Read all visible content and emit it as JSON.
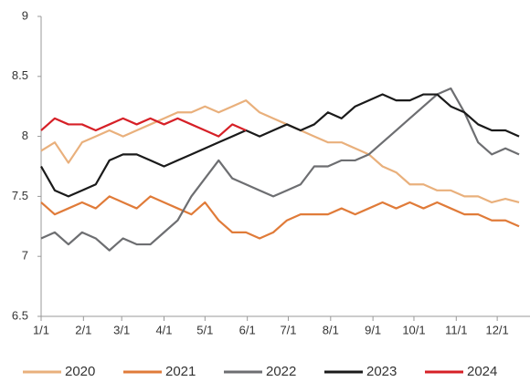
{
  "chart_data": {
    "type": "line",
    "x": [
      0,
      10,
      20,
      30,
      40,
      50,
      60,
      70,
      80,
      90,
      100,
      110,
      120,
      130,
      140,
      150,
      160,
      170,
      180,
      190,
      200,
      210,
      220,
      230,
      240,
      250,
      260,
      270,
      280,
      290,
      300,
      310,
      320,
      330,
      340,
      350
    ],
    "xlim": [
      0,
      358
    ],
    "xticks": [
      {
        "value": 0,
        "label": "1/1"
      },
      {
        "value": 31,
        "label": "2/1"
      },
      {
        "value": 59,
        "label": "3/1"
      },
      {
        "value": 90,
        "label": "4/1"
      },
      {
        "value": 120,
        "label": "5/1"
      },
      {
        "value": 151,
        "label": "6/1"
      },
      {
        "value": 181,
        "label": "7/1"
      },
      {
        "value": 212,
        "label": "8/1"
      },
      {
        "value": 243,
        "label": "9/1"
      },
      {
        "value": 273,
        "label": "10/1"
      },
      {
        "value": 304,
        "label": "11/1"
      },
      {
        "value": 334,
        "label": "12/1"
      }
    ],
    "ylim": [
      6.5,
      9
    ],
    "yticks": [
      6.5,
      7,
      7.5,
      8,
      8.5,
      9
    ],
    "grid": false,
    "legend": "bottom",
    "series": [
      {
        "name": "2020",
        "color": "#e9b07c",
        "values": [
          7.88,
          7.95,
          7.78,
          7.95,
          8.0,
          8.05,
          8.0,
          8.05,
          8.1,
          8.15,
          8.2,
          8.2,
          8.25,
          8.2,
          8.25,
          8.3,
          8.2,
          8.15,
          8.1,
          8.05,
          8.0,
          7.95,
          7.95,
          7.9,
          7.85,
          7.75,
          7.7,
          7.6,
          7.6,
          7.55,
          7.55,
          7.5,
          7.5,
          7.45,
          7.48,
          7.45
        ]
      },
      {
        "name": "2021",
        "color": "#e07b39",
        "values": [
          7.45,
          7.35,
          7.4,
          7.45,
          7.4,
          7.5,
          7.45,
          7.4,
          7.5,
          7.45,
          7.4,
          7.35,
          7.45,
          7.3,
          7.2,
          7.2,
          7.15,
          7.2,
          7.3,
          7.35,
          7.35,
          7.35,
          7.4,
          7.35,
          7.4,
          7.45,
          7.4,
          7.45,
          7.4,
          7.45,
          7.4,
          7.35,
          7.35,
          7.3,
          7.3,
          7.25
        ]
      },
      {
        "name": "2022",
        "color": "#6d6e71",
        "values": [
          7.15,
          7.2,
          7.1,
          7.2,
          7.15,
          7.05,
          7.15,
          7.1,
          7.1,
          7.2,
          7.3,
          7.5,
          7.65,
          7.8,
          7.65,
          7.6,
          7.55,
          7.5,
          7.55,
          7.6,
          7.75,
          7.75,
          7.8,
          7.8,
          7.85,
          7.95,
          8.05,
          8.15,
          8.25,
          8.35,
          8.4,
          8.2,
          7.95,
          7.85,
          7.9,
          7.85
        ]
      },
      {
        "name": "2023",
        "color": "#1a1a1a",
        "values": [
          7.75,
          7.55,
          7.5,
          7.55,
          7.6,
          7.8,
          7.85,
          7.85,
          7.8,
          7.75,
          7.8,
          7.85,
          7.9,
          7.95,
          8.0,
          8.05,
          8.0,
          8.05,
          8.1,
          8.05,
          8.1,
          8.2,
          8.15,
          8.25,
          8.3,
          8.35,
          8.3,
          8.3,
          8.35,
          8.35,
          8.25,
          8.2,
          8.1,
          8.05,
          8.05,
          8.0
        ]
      },
      {
        "name": "2024",
        "color": "#d62027",
        "values": [
          8.05,
          8.15,
          8.1,
          8.1,
          8.05,
          8.1,
          8.15,
          8.1,
          8.15,
          8.1,
          8.15,
          8.1,
          8.05,
          8.0,
          8.1,
          8.05,
          null,
          null,
          null,
          null,
          null,
          null,
          null,
          null,
          null,
          null,
          null,
          null,
          null,
          null,
          null,
          null,
          null,
          null,
          null,
          null
        ]
      }
    ]
  }
}
